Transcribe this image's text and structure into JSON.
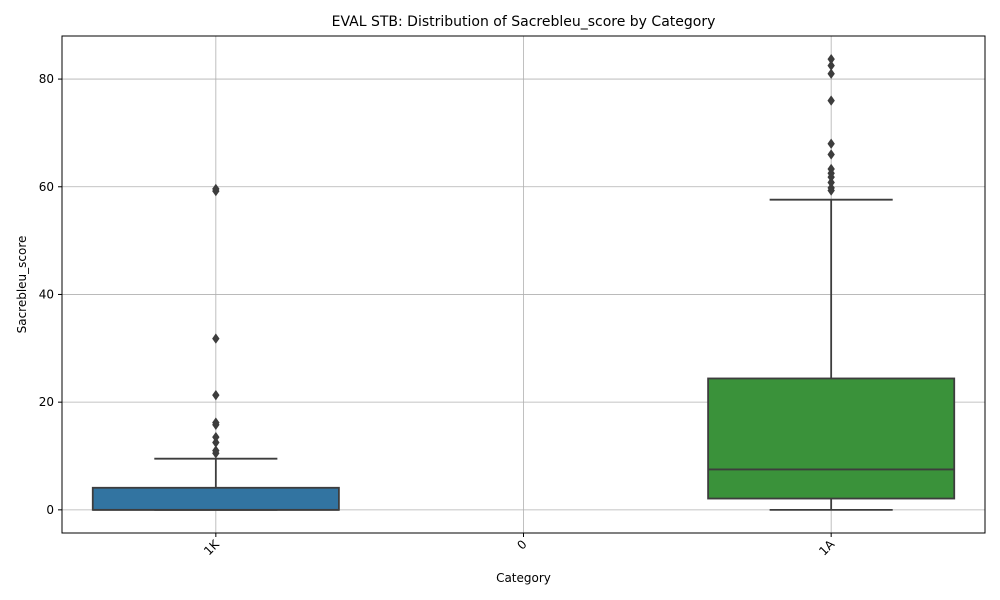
{
  "chart_data": {
    "type": "box",
    "title": "EVAL STB: Distribution of Sacrebleu_score by Category",
    "xlabel": "Category",
    "ylabel": "Sacrebleu_score",
    "ylim": [
      -4.3,
      88
    ],
    "yticks": [
      0,
      20,
      40,
      60,
      80
    ],
    "grid": true,
    "categories": [
      "1K",
      "0",
      "1A"
    ],
    "colors": {
      "1K": "#3274a1",
      "1A": "#3a923a",
      "line": "#3d3d3d",
      "grid": "#b0b0b0"
    },
    "boxes": [
      {
        "category": "1K",
        "whisker_low": 0,
        "q1": 0,
        "median": 0,
        "q3": 4.1,
        "whisker_high": 9.5,
        "outliers": [
          10.5,
          11,
          12.5,
          13.5,
          15.8,
          16.2,
          21.3,
          31.8,
          59.2,
          59.6
        ]
      },
      {
        "category": "0",
        "empty": true
      },
      {
        "category": "1A",
        "whisker_low": 0,
        "q1": 2.1,
        "median": 7.5,
        "q3": 24.4,
        "whisker_high": 57.6,
        "outliers": [
          59.3,
          59.8,
          60.8,
          61.8,
          62.5,
          63.3,
          66,
          68,
          76,
          81,
          82.5,
          83.7
        ]
      }
    ]
  }
}
